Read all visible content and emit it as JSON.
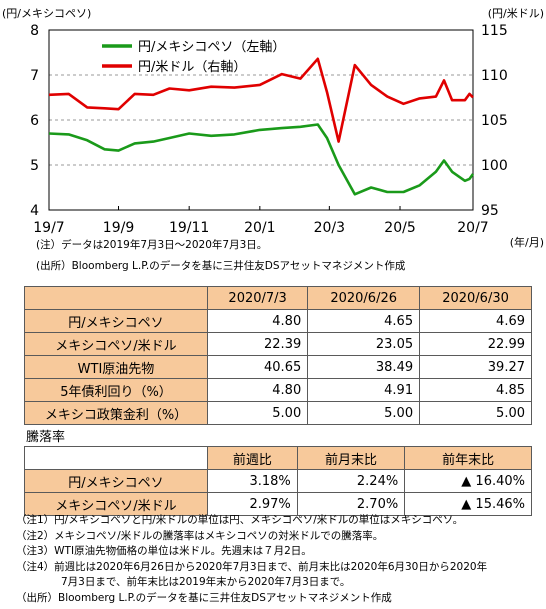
{
  "chart_data": {
    "type": "line",
    "y_left_unit": "(円/メキシコペソ)",
    "y_right_unit": "(円/米ドル)",
    "x_unit": "(年/月)",
    "x_tick_labels": [
      "19/7",
      "19/9",
      "19/11",
      "20/1",
      "20/3",
      "20/5",
      "20/7"
    ],
    "x_tick_dates": [
      "2019-07-03",
      "2019-09-01",
      "2019-11-01",
      "2020-01-01",
      "2020-03-01",
      "2020-05-01",
      "2020-07-03"
    ],
    "y_left_ticks": [
      "4",
      "5",
      "6",
      "7",
      "8"
    ],
    "y_right_ticks": [
      "95",
      "100",
      "105",
      "110",
      "115"
    ],
    "ylim_left": [
      4,
      8
    ],
    "ylim_right": [
      95,
      115
    ],
    "grid": "horizontal-dashed",
    "legend": "top-left",
    "series": [
      {
        "name": "円/メキシコペソ（左軸）",
        "axis": "left",
        "color": "#1a9a1a",
        "points": [
          [
            "2019-07-03",
            5.7
          ],
          [
            "2019-07-20",
            5.68
          ],
          [
            "2019-08-05",
            5.55
          ],
          [
            "2019-08-20",
            5.35
          ],
          [
            "2019-09-01",
            5.32
          ],
          [
            "2019-09-15",
            5.48
          ],
          [
            "2019-10-01",
            5.52
          ],
          [
            "2019-10-15",
            5.6
          ],
          [
            "2019-11-01",
            5.7
          ],
          [
            "2019-11-20",
            5.65
          ],
          [
            "2019-12-10",
            5.68
          ],
          [
            "2020-01-01",
            5.78
          ],
          [
            "2020-01-20",
            5.82
          ],
          [
            "2020-02-05",
            5.85
          ],
          [
            "2020-02-20",
            5.9
          ],
          [
            "2020-02-28",
            5.6
          ],
          [
            "2020-03-09",
            5.0
          ],
          [
            "2020-03-23",
            4.35
          ],
          [
            "2020-04-06",
            4.5
          ],
          [
            "2020-04-20",
            4.4
          ],
          [
            "2020-05-04",
            4.4
          ],
          [
            "2020-05-18",
            4.55
          ],
          [
            "2020-06-01",
            4.85
          ],
          [
            "2020-06-08",
            5.1
          ],
          [
            "2020-06-15",
            4.85
          ],
          [
            "2020-06-26",
            4.65
          ],
          [
            "2020-06-30",
            4.69
          ],
          [
            "2020-07-03",
            4.8
          ]
        ]
      },
      {
        "name": "円/米ドル（右軸）",
        "axis": "right",
        "color": "#e00000",
        "points": [
          [
            "2019-07-03",
            107.8
          ],
          [
            "2019-07-20",
            107.9
          ],
          [
            "2019-08-05",
            106.4
          ],
          [
            "2019-08-20",
            106.3
          ],
          [
            "2019-09-01",
            106.2
          ],
          [
            "2019-09-15",
            107.9
          ],
          [
            "2019-10-01",
            107.8
          ],
          [
            "2019-10-15",
            108.5
          ],
          [
            "2019-11-01",
            108.3
          ],
          [
            "2019-11-20",
            108.7
          ],
          [
            "2019-12-10",
            108.6
          ],
          [
            "2020-01-01",
            108.9
          ],
          [
            "2020-01-20",
            110.1
          ],
          [
            "2020-02-05",
            109.6
          ],
          [
            "2020-02-20",
            111.8
          ],
          [
            "2020-02-28",
            108.1
          ],
          [
            "2020-03-09",
            102.6
          ],
          [
            "2020-03-23",
            111.1
          ],
          [
            "2020-04-06",
            108.9
          ],
          [
            "2020-04-20",
            107.6
          ],
          [
            "2020-05-04",
            106.8
          ],
          [
            "2020-05-18",
            107.4
          ],
          [
            "2020-06-01",
            107.6
          ],
          [
            "2020-06-08",
            109.4
          ],
          [
            "2020-06-15",
            107.2
          ],
          [
            "2020-06-26",
            107.2
          ],
          [
            "2020-06-30",
            107.9
          ],
          [
            "2020-07-03",
            107.5
          ]
        ]
      }
    ]
  },
  "chart_notes": {
    "note1": "(注）データは2019年7月3日～2020年7月3日。",
    "note2": "(出所）Bloomberg L.P.のデータを基に三井住友DSアセットマネジメント作成"
  },
  "table1": {
    "headers": [
      "2020/7/3",
      "2020/6/26",
      "2020/6/30"
    ],
    "rows": [
      {
        "label": "円/メキシコペソ",
        "values": [
          "4.80",
          "4.65",
          "4.69"
        ]
      },
      {
        "label": "メキシコペソ/米ドル",
        "values": [
          "22.39",
          "23.05",
          "22.99"
        ]
      },
      {
        "label": "WTI原油先物",
        "values": [
          "40.65",
          "38.49",
          "39.27"
        ]
      },
      {
        "label": "5年債利回り（%）",
        "values": [
          "4.80",
          "4.91",
          "4.85"
        ]
      },
      {
        "label": "メキシコ政策金利（%）",
        "values": [
          "5.00",
          "5.00",
          "5.00"
        ]
      }
    ]
  },
  "table2": {
    "caption": "騰落率",
    "headers": [
      "前週比",
      "前月末比",
      "前年末比"
    ],
    "rows": [
      {
        "label": "円/メキシコペソ",
        "values": [
          "3.18%",
          "2.24%",
          "▲ 16.40%"
        ]
      },
      {
        "label": "メキシコペソ/米ドル",
        "values": [
          "2.97%",
          "2.70%",
          "▲ 15.46%"
        ]
      }
    ]
  },
  "footnotes": [
    "（注1）円/メキシコペソと円/米ドルの単位は円、メキシコペソ/米ドルの単位はメキシコペソ。",
    "（注2）メキシコペソ/米ドルの騰落率はメキシコペソの対米ドルでの騰落率。",
    "（注3）WTI原油先物価格の単位は米ドル。先週末は７月2日。",
    "（注4）前週比は2020年6月26日から2020年7月3日まで、前月末比は2020年6月30日から2020年",
    "7月3日まで、前年末比は2019年末から2020年7月3日まで。",
    "（出所）Bloomberg L.P.のデータを基に三井住友DSアセットマネジメント作成"
  ]
}
